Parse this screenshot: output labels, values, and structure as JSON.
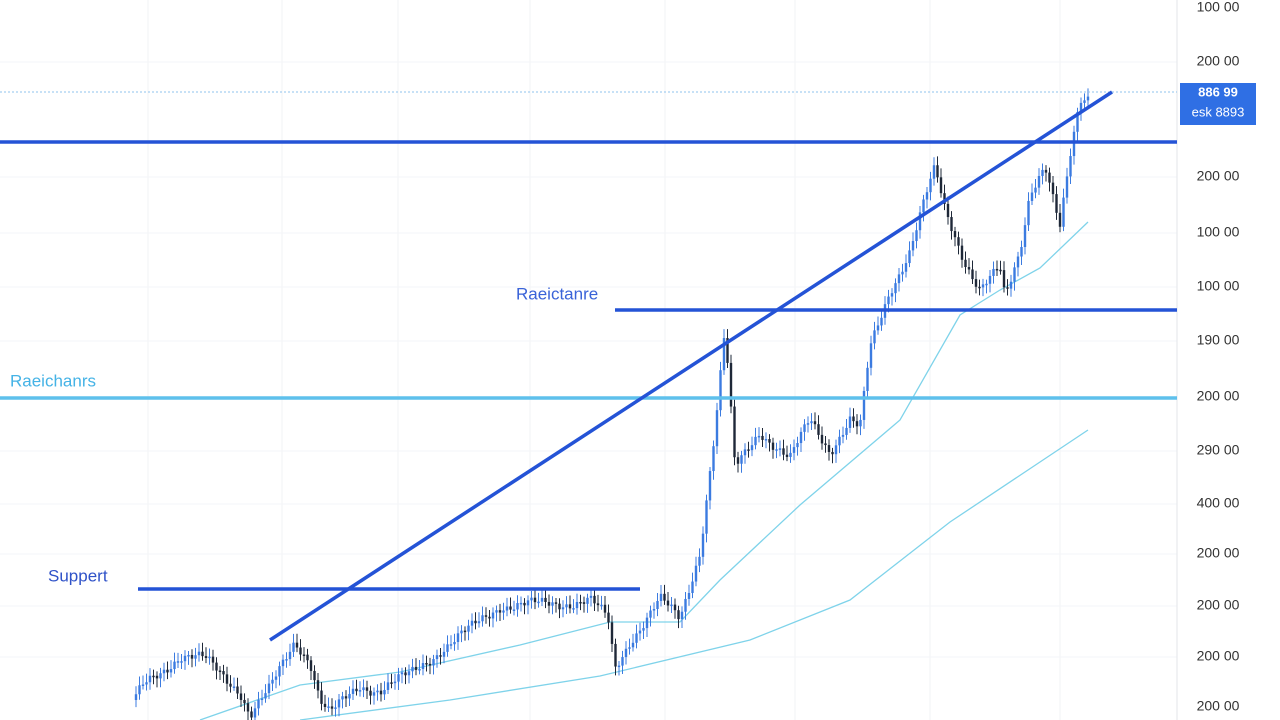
{
  "axis_labels": [
    "100 00",
    "200 00",
    "200 00",
    "100 00",
    "100 00",
    "190 00",
    "200 00",
    "290 00",
    "400 00",
    "200 00",
    "200 00",
    "200 00",
    "200 00"
  ],
  "price_tag": {
    "top": "886 99",
    "bottom": "esk 8893"
  },
  "annotations": {
    "resistance_upper": "Raeictanre",
    "resistance_lower": "Raeichanrs",
    "support": "Suppert"
  }
}
